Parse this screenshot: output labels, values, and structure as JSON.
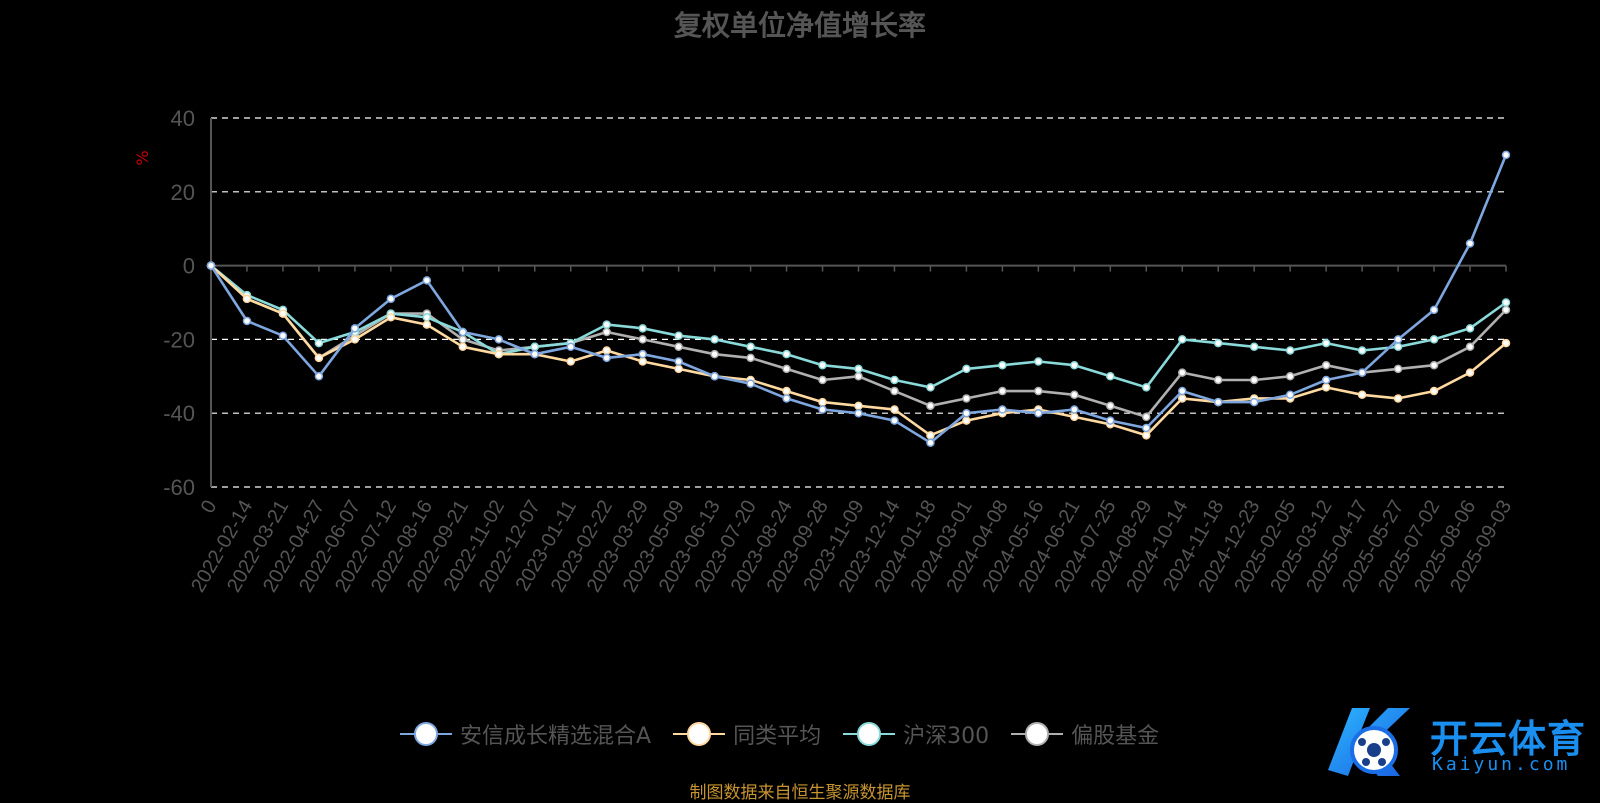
{
  "title": "复权单位净值增长率",
  "source_note": "制图数据来自恒生聚源数据库",
  "logo": {
    "text": "开云体育",
    "sub": "Kaiyun.com"
  },
  "colors": {
    "background": "#000000",
    "grid": "#ffffff",
    "axis": "#555555",
    "unit": "#cc0000"
  },
  "chart_data": {
    "type": "line",
    "title": "复权单位净值增长率",
    "ylabel": "%",
    "ylim": [
      -60,
      40
    ],
    "yticks": [
      40,
      20,
      0,
      -20,
      -40,
      -60
    ],
    "xticks": [
      "0",
      "2022-02-14",
      "2022-03-21",
      "2022-04-27",
      "2022-06-07",
      "2022-07-12",
      "2022-08-16",
      "2022-09-21",
      "2022-11-02",
      "2022-12-07",
      "2023-01-11",
      "2023-02-22",
      "2023-03-29",
      "2023-05-09",
      "2023-06-13",
      "2023-07-20",
      "2023-08-24",
      "2023-09-28",
      "2023-11-09",
      "2023-12-14",
      "2024-01-18",
      "2024-03-01",
      "2024-04-08",
      "2024-05-16",
      "2024-06-21",
      "2024-07-25",
      "2024-08-29",
      "2024-10-14",
      "2024-11-18",
      "2024-12-23",
      "2025-02-05",
      "2025-03-12",
      "2025-04-17",
      "2025-05-27",
      "2025-07-02",
      "2025-08-06",
      "2025-09-03"
    ],
    "grid": true,
    "legend_position": "bottom",
    "series": [
      {
        "name": "安信成长精选混合A",
        "color": "#7fa7df",
        "values": [
          0,
          -15,
          -19,
          -30,
          -17,
          -9,
          -4,
          -18,
          -20,
          -24,
          -22,
          -25,
          -24,
          -26,
          -30,
          -32,
          -36,
          -39,
          -40,
          -42,
          -48,
          -40,
          -39,
          -40,
          -39,
          -42,
          -44,
          -34,
          -37,
          -37,
          -35,
          -31,
          -29,
          -20,
          -12,
          6,
          30
        ]
      },
      {
        "name": "同类平均",
        "color": "#ffd9a0",
        "values": [
          0,
          -9,
          -13,
          -25,
          -20,
          -14,
          -16,
          -22,
          -24,
          -24,
          -26,
          -23,
          -26,
          -28,
          -30,
          -31,
          -34,
          -37,
          -38,
          -39,
          -46,
          -42,
          -40,
          -39,
          -41,
          -43,
          -46,
          -36,
          -37,
          -36,
          -36,
          -33,
          -35,
          -36,
          -34,
          -29,
          -21
        ]
      },
      {
        "name": "沪深300",
        "color": "#8adada",
        "values": [
          0,
          -8,
          -12,
          -21,
          -18,
          -13,
          -14,
          -18,
          -24,
          -22,
          -21,
          -16,
          -17,
          -19,
          -20,
          -22,
          -24,
          -27,
          -28,
          -31,
          -33,
          -28,
          -27,
          -26,
          -27,
          -30,
          -33,
          -20,
          -21,
          -22,
          -23,
          -21,
          -23,
          -22,
          -20,
          -17,
          -10
        ]
      },
      {
        "name": "偏股基金",
        "color": "#b0b0b0",
        "values": [
          0,
          -9,
          -13,
          -25,
          -19,
          -13,
          -13,
          -20,
          -23,
          -22,
          -21,
          -18,
          -20,
          -22,
          -24,
          -25,
          -28,
          -31,
          -30,
          -34,
          -38,
          -36,
          -34,
          -34,
          -35,
          -38,
          -41,
          -29,
          -31,
          -31,
          -30,
          -27,
          -29,
          -28,
          -27,
          -22,
          -12
        ]
      }
    ]
  }
}
